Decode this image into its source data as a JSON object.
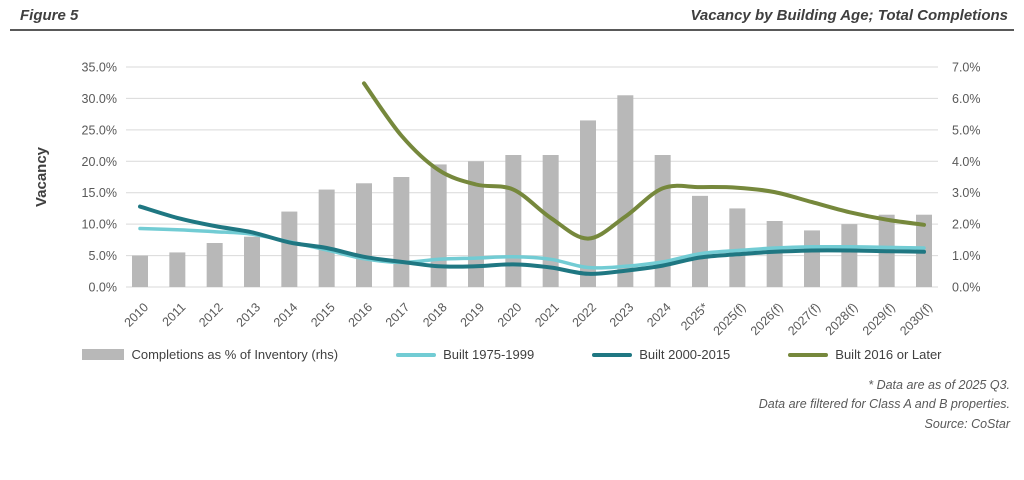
{
  "header": {
    "figure_label": "Figure 5",
    "title": "Vacancy by Building Age; Total Completions"
  },
  "chart_data": {
    "type": "combo",
    "categories": [
      "2010",
      "2011",
      "2012",
      "2013",
      "2014",
      "2015",
      "2016",
      "2017",
      "2018",
      "2019",
      "2020",
      "2021",
      "2022",
      "2023",
      "2024",
      "2025*",
      "2025(f)",
      "2026(f)",
      "2027(f)",
      "2028(f)",
      "2029(f)",
      "2030(f)"
    ],
    "series": [
      {
        "name": "Completions as % of Inventory (rhs)",
        "type": "bar",
        "axis": "right",
        "color": "#b8b8b8",
        "values": [
          1.0,
          1.1,
          1.4,
          1.6,
          2.4,
          3.1,
          3.3,
          3.5,
          3.9,
          4.0,
          4.2,
          4.2,
          5.3,
          6.1,
          4.2,
          2.9,
          2.5,
          2.1,
          1.8,
          2.0,
          2.3,
          2.3
        ]
      },
      {
        "name": "Built 1975-1999",
        "type": "line",
        "axis": "left",
        "color": "#72ccd4",
        "stroke_width": 3.5,
        "values": [
          9.3,
          9.1,
          8.8,
          8.4,
          7.2,
          5.9,
          4.5,
          3.9,
          4.4,
          4.6,
          4.8,
          4.4,
          3.1,
          3.3,
          4.0,
          5.3,
          5.8,
          6.2,
          6.4,
          6.4,
          6.3,
          6.2
        ]
      },
      {
        "name": "Built 2000-2015",
        "type": "line",
        "axis": "left",
        "color": "#1f7782",
        "stroke_width": 4,
        "values": [
          12.8,
          11.0,
          9.7,
          8.7,
          7.1,
          6.2,
          4.8,
          4.0,
          3.3,
          3.3,
          3.6,
          3.1,
          2.1,
          2.6,
          3.4,
          4.7,
          5.2,
          5.6,
          5.8,
          5.8,
          5.7,
          5.6
        ]
      },
      {
        "name": "Built 2016 or Later",
        "type": "line",
        "axis": "left",
        "color": "#76883c",
        "stroke_width": 4,
        "values": [
          null,
          null,
          null,
          null,
          null,
          null,
          32.4,
          24.1,
          18.6,
          16.3,
          15.5,
          11.0,
          7.7,
          11.2,
          15.7,
          15.9,
          15.8,
          15.1,
          13.5,
          11.9,
          10.7,
          9.9
        ]
      }
    ],
    "left_axis": {
      "label": "Vacancy",
      "min": 0,
      "max": 35,
      "step": 5,
      "tick_labels": [
        "0.0%",
        "5.0%",
        "10.0%",
        "15.0%",
        "20.0%",
        "25.0%",
        "30.0%",
        "35.0%"
      ]
    },
    "right_axis": {
      "min": 0,
      "max": 7,
      "step": 1,
      "tick_labels": [
        "0.0%",
        "1.0%",
        "2.0%",
        "3.0%",
        "4.0%",
        "5.0%",
        "6.0%",
        "7.0%"
      ]
    },
    "grid": true,
    "legend_position": "bottom"
  },
  "footnotes": {
    "line1": "* Data are as of 2025 Q3.",
    "line2": "Data are filtered for Class A and B properties.",
    "line3": "Source: CoStar"
  },
  "colors": {
    "grid": "#d9d9d9",
    "axis_text": "#595959",
    "header_text": "#3f3f3f",
    "rule": "#595959"
  }
}
